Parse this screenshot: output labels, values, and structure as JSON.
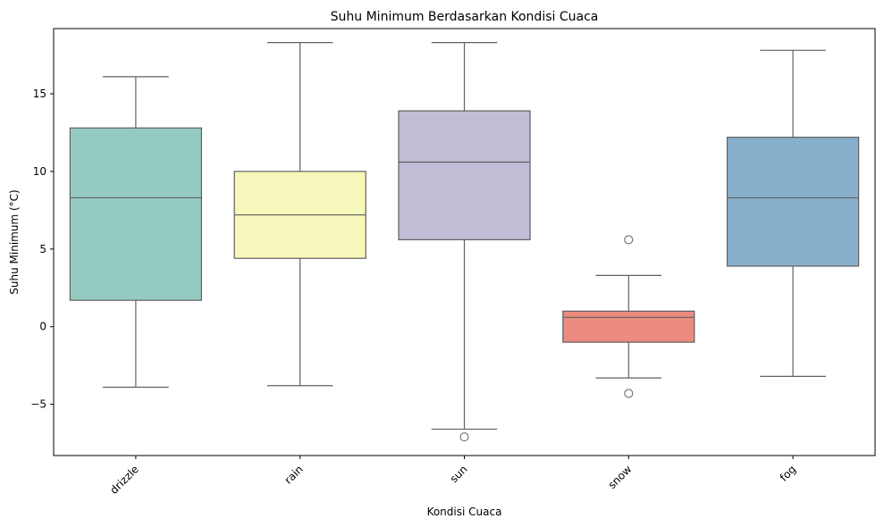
{
  "chart_data": {
    "type": "box",
    "title": "Suhu Minimum Berdasarkan Kondisi Cuaca",
    "xlabel": "Kondisi Cuaca",
    "ylabel": "Suhu Minimum (°C)",
    "ylim": [
      -8.3,
      19.2
    ],
    "yticks": [
      -5,
      0,
      5,
      10,
      15
    ],
    "grid": false,
    "categories": [
      "drizzle",
      "rain",
      "sun",
      "snow",
      "fog"
    ],
    "boxes": [
      {
        "category": "drizzle",
        "whisker_low": -3.9,
        "q1": 1.7,
        "median": 8.3,
        "q3": 12.8,
        "whisker_high": 16.1,
        "outliers": [],
        "color": "#96CBC2"
      },
      {
        "category": "rain",
        "whisker_low": -3.8,
        "q1": 4.4,
        "median": 7.2,
        "q3": 10.0,
        "whisker_high": 18.3,
        "outliers": [],
        "color": "#F6F7BA"
      },
      {
        "category": "sun",
        "whisker_low": -6.6,
        "q1": 5.6,
        "median": 10.6,
        "q3": 13.9,
        "whisker_high": 18.3,
        "outliers": [
          -7.1
        ],
        "color": "#C0BED6"
      },
      {
        "category": "snow",
        "whisker_low": -3.3,
        "q1": -1.0,
        "median": 0.6,
        "q3": 1.0,
        "whisker_high": 3.3,
        "outliers": [
          5.6,
          -4.3
        ],
        "color": "#EC8B80"
      },
      {
        "category": "fog",
        "whisker_low": -3.2,
        "q1": 3.9,
        "median": 8.3,
        "q3": 12.2,
        "whisker_high": 17.8,
        "outliers": [],
        "color": "#88AFCB"
      }
    ]
  }
}
